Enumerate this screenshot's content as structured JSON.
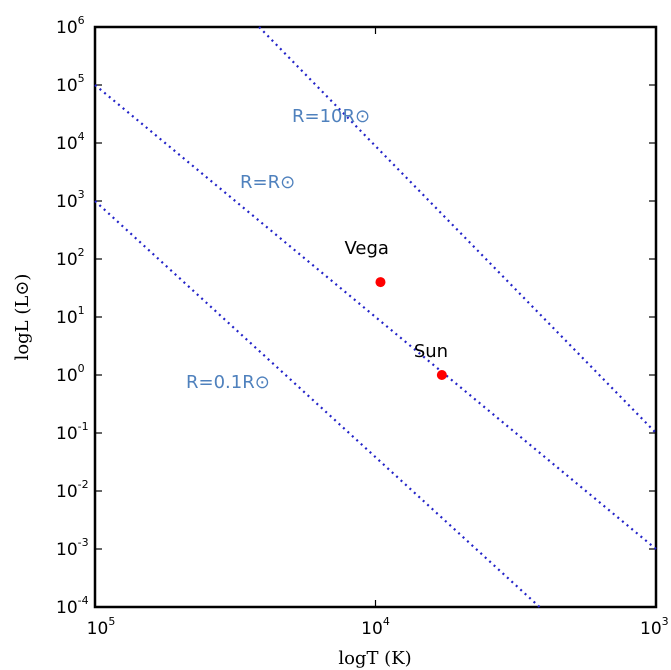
{
  "chart_data": {
    "type": "scatter",
    "title": "",
    "xlabel": "logT (K)",
    "ylabel": "logL (L⊙)",
    "x_axis": {
      "scale": "log",
      "direction": "reversed",
      "range": [
        100000,
        1000
      ],
      "ticks": [
        {
          "value": 100000,
          "base": "10",
          "exp": "5"
        },
        {
          "value": 10000,
          "base": "10",
          "exp": "4"
        },
        {
          "value": 1000,
          "base": "10",
          "exp": "3"
        }
      ]
    },
    "y_axis": {
      "scale": "log",
      "range": [
        0.0001,
        1000000
      ],
      "ticks": [
        {
          "value": 1000000,
          "base": "10",
          "exp": "6"
        },
        {
          "value": 100000,
          "base": "10",
          "exp": "5"
        },
        {
          "value": 10000,
          "base": "10",
          "exp": "4"
        },
        {
          "value": 1000,
          "base": "10",
          "exp": "3"
        },
        {
          "value": 100,
          "base": "10",
          "exp": "2"
        },
        {
          "value": 10,
          "base": "10",
          "exp": "1"
        },
        {
          "value": 1,
          "base": "10",
          "exp": "0"
        },
        {
          "value": 0.1,
          "base": "10",
          "exp": "-1"
        },
        {
          "value": 0.01,
          "base": "10",
          "exp": "-2"
        },
        {
          "value": 0.001,
          "base": "10",
          "exp": "-3"
        },
        {
          "value": 0.0001,
          "base": "10",
          "exp": "-4"
        }
      ]
    },
    "grid": false,
    "series": [
      {
        "name": "R=10R⊙",
        "type": "line",
        "style": "dotted",
        "color": "#2323c8",
        "label_color": "#4f81bd",
        "points": [
          [
            26000,
            1000000
          ],
          [
            1000,
            0.1
          ]
        ]
      },
      {
        "name": "R=R⊙",
        "type": "line",
        "style": "dotted",
        "color": "#2323c8",
        "label_color": "#4f81bd",
        "points": [
          [
            100000,
            100000
          ],
          [
            1000,
            0.001
          ]
        ]
      },
      {
        "name": "R=0.1R⊙",
        "type": "line",
        "style": "dotted",
        "color": "#2323c8",
        "label_color": "#4f81bd",
        "points": [
          [
            100000,
            1000
          ],
          [
            2600,
            0.0001
          ]
        ]
      }
    ],
    "points": [
      {
        "name": "Vega",
        "x": 9600,
        "y": 40,
        "color": "#ff0000"
      },
      {
        "name": "Sun",
        "x": 5800,
        "y": 1,
        "color": "#ff0000"
      }
    ]
  }
}
